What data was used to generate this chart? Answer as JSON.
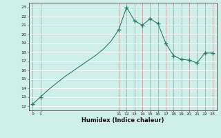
{
  "x_marked": [
    0,
    1,
    11,
    12,
    13,
    14,
    15,
    16,
    17,
    18,
    19,
    20,
    21,
    22,
    23
  ],
  "y_marked": [
    12.2,
    13.0,
    20.5,
    23.0,
    21.5,
    21.0,
    21.7,
    21.2,
    19.0,
    17.6,
    17.2,
    17.1,
    16.8,
    17.9,
    17.9
  ],
  "x_line": [
    0,
    1,
    2,
    3,
    4,
    5,
    6,
    7,
    8,
    9,
    10,
    11,
    12,
    13,
    14,
    15,
    16,
    17,
    18,
    19,
    20,
    21,
    22,
    23
  ],
  "y_line": [
    12.2,
    13.0,
    13.8,
    14.5,
    15.2,
    15.8,
    16.4,
    17.0,
    17.6,
    18.3,
    19.2,
    20.5,
    23.0,
    21.5,
    21.0,
    21.7,
    21.2,
    19.0,
    17.6,
    17.2,
    17.1,
    16.8,
    17.9,
    17.9
  ],
  "ylim": [
    11.5,
    23.5
  ],
  "xlim": [
    -0.5,
    23.5
  ],
  "yticks": [
    12,
    13,
    14,
    15,
    16,
    17,
    18,
    19,
    20,
    21,
    22,
    23
  ],
  "xticks": [
    0,
    1,
    11,
    12,
    13,
    14,
    15,
    16,
    17,
    18,
    19,
    20,
    21,
    22,
    23
  ],
  "xlabel": "Humidex (Indice chaleur)",
  "line_color": "#2d7a6b",
  "marker_color": "#2d7a6b",
  "bg_color": "#ceeee8",
  "grid_color": "#b8d8d2"
}
